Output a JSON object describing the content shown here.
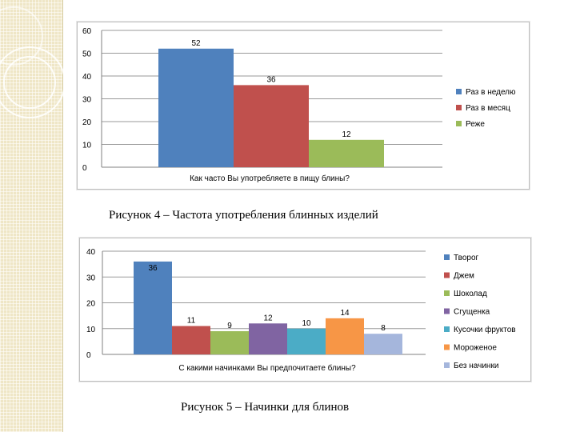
{
  "slide": {
    "caption1": "Рисунок 4 – Частота употребления блинных изделий",
    "caption2": "Рисунок  5 – Начинки для блинов"
  },
  "chart_data": [
    {
      "type": "bar",
      "title": "",
      "xlabel": "Как часто Вы употребляете в пищу блины?",
      "ylabel": "",
      "ylim": [
        0,
        60
      ],
      "yticks": [
        0,
        10,
        20,
        30,
        40,
        50,
        60
      ],
      "grid": true,
      "legend_position": "right",
      "series": [
        {
          "name": "Раз в неделю",
          "value": 52,
          "color": "#4f81bd"
        },
        {
          "name": "Раз в месяц",
          "value": 36,
          "color": "#c0504d"
        },
        {
          "name": "Реже",
          "value": 12,
          "color": "#9bbb59"
        }
      ]
    },
    {
      "type": "bar",
      "title": "",
      "xlabel": "С какими начинками Вы предпочитаете блины?",
      "ylabel": "",
      "ylim": [
        0,
        40
      ],
      "yticks": [
        0,
        10,
        20,
        30,
        40
      ],
      "grid": true,
      "legend_position": "right",
      "series": [
        {
          "name": "Творог",
          "value": 36,
          "color": "#4f81bd"
        },
        {
          "name": "Джем",
          "value": 11,
          "color": "#c0504d"
        },
        {
          "name": "Шоколад",
          "value": 9,
          "color": "#9bbb59"
        },
        {
          "name": "Сгущенка",
          "value": 12,
          "color": "#8064a2"
        },
        {
          "name": "Кусочки фруктов",
          "value": 10,
          "color": "#4bacc6"
        },
        {
          "name": "Мороженое",
          "value": 14,
          "color": "#f79646"
        },
        {
          "name": "Без начинки",
          "value": 8,
          "color": "#a5b6dc"
        }
      ]
    }
  ]
}
